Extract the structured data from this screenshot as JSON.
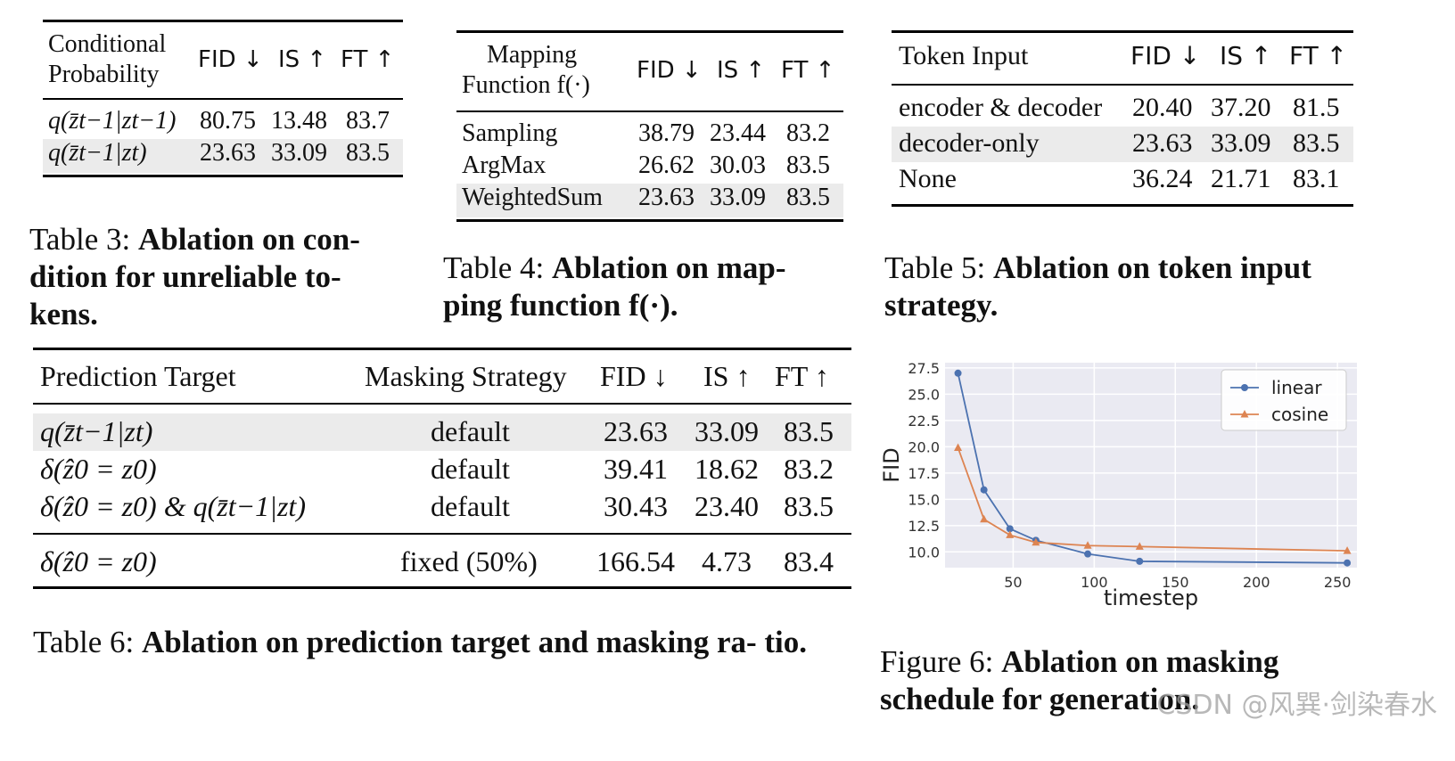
{
  "table3": {
    "header": [
      "Conditional\nProbability",
      "FID ↓",
      "IS ↑",
      "FT ↑"
    ],
    "header_line1": "Conditional",
    "header_line2": "Probability",
    "rows": [
      {
        "label": "q(z̄t−1|zt−1)",
        "fid": "80.75",
        "is": "13.48",
        "ft": "83.7"
      },
      {
        "label": "q(z̄t−1|zt)",
        "fid": "23.63",
        "is": "33.09",
        "ft": "83.5"
      }
    ],
    "caption_prefix": "Table 3:",
    "caption_bold": "Ablation on con- dition for unreliable to- kens."
  },
  "table4": {
    "header_line1": "Mapping",
    "header_line2": "Function f(·)",
    "cols": [
      "FID ↓",
      "IS ↑",
      "FT ↑"
    ],
    "rows": [
      {
        "label": "Sampling",
        "fid": "38.79",
        "is": "23.44",
        "ft": "83.2"
      },
      {
        "label": "ArgMax",
        "fid": "26.62",
        "is": "30.03",
        "ft": "83.5"
      },
      {
        "label": "WeightedSum",
        "fid": "23.63",
        "is": "33.09",
        "ft": "83.5"
      }
    ],
    "caption_prefix": "Table 4:",
    "caption_bold": "Ablation on map- ping function f(·)."
  },
  "table5": {
    "cols": [
      "Token Input",
      "FID ↓",
      "IS ↑",
      "FT ↑"
    ],
    "rows": [
      {
        "label": "encoder & decoder",
        "fid": "20.40",
        "is": "37.20",
        "ft": "81.5"
      },
      {
        "label": "decoder-only",
        "fid": "23.63",
        "is": "33.09",
        "ft": "83.5"
      },
      {
        "label": "None",
        "fid": "36.24",
        "is": "21.71",
        "ft": "83.1"
      }
    ],
    "caption_prefix": "Table 5:",
    "caption_bold": "Ablation on token input strategy."
  },
  "table6": {
    "cols": [
      "Prediction Target",
      "Masking Strategy",
      "FID ↓",
      "IS ↑",
      "FT ↑"
    ],
    "rows": [
      {
        "label": "q(z̄t−1|zt)",
        "mask": "default",
        "fid": "23.63",
        "is": "33.09",
        "ft": "83.5"
      },
      {
        "label": "δ(ẑ0 = z0)",
        "mask": "default",
        "fid": "39.41",
        "is": "18.62",
        "ft": "83.2"
      },
      {
        "label": "δ(ẑ0 = z0) & q(z̄t−1|zt)",
        "mask": "default",
        "fid": "30.43",
        "is": "23.40",
        "ft": "83.5"
      },
      {
        "label": "δ(ẑ0 = z0)",
        "mask": "fixed (50%)",
        "fid": "166.54",
        "is": "4.73",
        "ft": "83.4"
      }
    ],
    "caption_prefix": "Table 6:",
    "caption_bold": "Ablation on prediction target and masking ra- tio."
  },
  "figure6": {
    "caption_prefix": "Figure 6:",
    "caption_bold": "Ablation on masking schedule for generation.",
    "watermark": "CSDN @风巽·剑染春水"
  },
  "chart_data": {
    "type": "line",
    "xlabel": "timestep",
    "ylabel": "FID",
    "xlim": [
      8,
      262
    ],
    "ylim": [
      8.5,
      28.0
    ],
    "xticks": [
      50,
      100,
      150,
      200,
      250
    ],
    "yticks": [
      10.0,
      12.5,
      15.0,
      17.5,
      20.0,
      22.5,
      25.0,
      27.5
    ],
    "grid": true,
    "legend_position": "top-right",
    "series": [
      {
        "name": "linear",
        "color": "#4c72b0",
        "marker": "circle",
        "x": [
          16,
          32,
          48,
          64,
          96,
          128,
          256
        ],
        "y": [
          27.0,
          15.9,
          12.2,
          11.1,
          9.8,
          9.1,
          8.95
        ]
      },
      {
        "name": "cosine",
        "color": "#dd8452",
        "marker": "triangle",
        "x": [
          16,
          32,
          48,
          64,
          96,
          128,
          256
        ],
        "y": [
          19.9,
          13.1,
          11.6,
          10.9,
          10.6,
          10.5,
          10.1
        ]
      }
    ]
  }
}
